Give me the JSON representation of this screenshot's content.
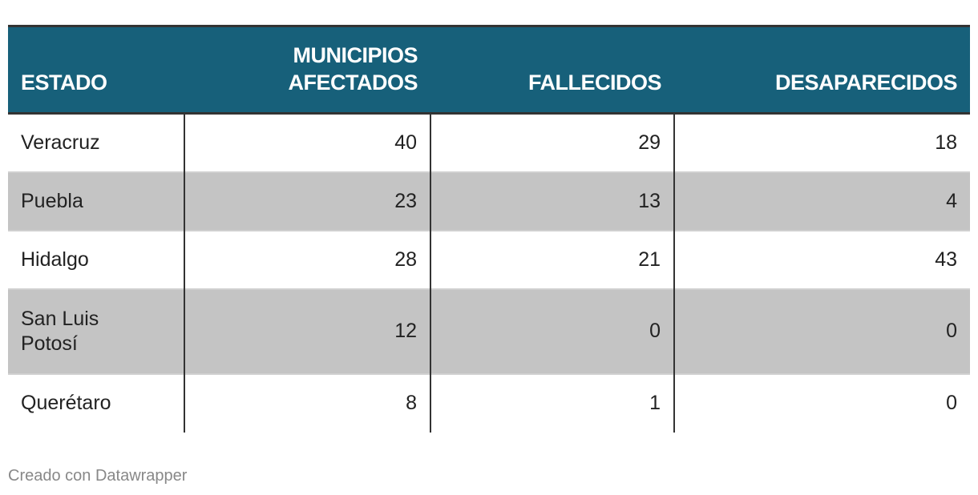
{
  "table": {
    "headers": [
      "ESTADO",
      "MUNICIPIOS AFECTADOS",
      "FALLECIDOS",
      "DESAPARECIDOS"
    ],
    "rows": [
      [
        "Veracruz",
        "40",
        "29",
        "18"
      ],
      [
        "Puebla",
        "23",
        "13",
        "4"
      ],
      [
        "Hidalgo",
        "28",
        "21",
        "43"
      ],
      [
        "San Luis Potosí",
        "12",
        "0",
        "0"
      ],
      [
        "Querétaro",
        "8",
        "1",
        "0"
      ]
    ]
  },
  "credit": "Creado con Datawrapper",
  "colors": {
    "header_bg": "#17607a",
    "alt_row": "#c4c4c4"
  }
}
